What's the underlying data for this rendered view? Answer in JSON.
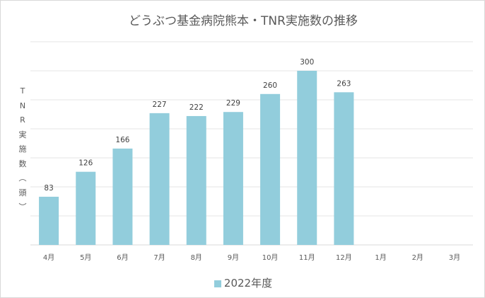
{
  "chart_data": {
    "type": "bar",
    "title": "どうぶつ基金病院熊本・TNR実施数の推移",
    "xlabel": "",
    "ylabel": "TNR実施数（頭）",
    "ylabel_chars": [
      "T",
      "N",
      "R",
      "実",
      "施",
      "数",
      "︵",
      "頭",
      "︶"
    ],
    "categories": [
      "4月",
      "5月",
      "6月",
      "7月",
      "8月",
      "9月",
      "10月",
      "11月",
      "12月",
      "1月",
      "2月",
      "3月"
    ],
    "series": [
      {
        "name": "2022年度",
        "values": [
          83,
          126,
          166,
          227,
          222,
          229,
          260,
          300,
          263,
          null,
          null,
          null
        ]
      }
    ],
    "ylim": [
      0,
      350
    ],
    "gridline_step": 50,
    "grid": true,
    "legend_position": "bottom",
    "color": "#92cddc"
  }
}
